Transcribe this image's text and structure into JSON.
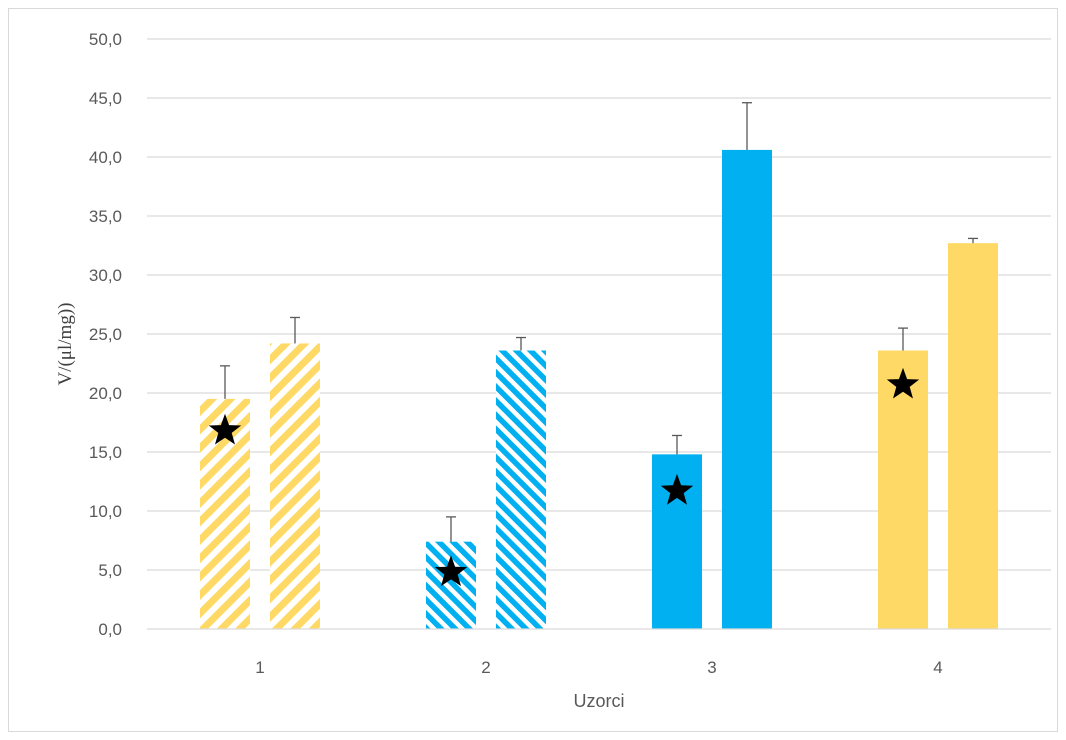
{
  "chart_data": {
    "type": "bar",
    "title": "",
    "xlabel": "Uzorci",
    "ylabel": "V/(μl/mg))",
    "ylim": [
      0,
      50
    ],
    "yticks": [
      "0,0",
      "5,0",
      "10,0",
      "15,0",
      "20,0",
      "25,0",
      "30,0",
      "35,0",
      "40,0",
      "45,0",
      "50,0"
    ],
    "grid": true,
    "legend": "none",
    "categories": [
      "1",
      "2",
      "3",
      "4"
    ],
    "bars": [
      {
        "category": "1",
        "value": 19.5,
        "error": 2.8,
        "color": "#ffd966",
        "pattern": "hatched",
        "star": true
      },
      {
        "category": "1",
        "value": 24.2,
        "error": 2.2,
        "color": "#ffd966",
        "pattern": "hatched",
        "star": false
      },
      {
        "category": "2",
        "value": 7.4,
        "error": 2.1,
        "color": "#00b0f0",
        "pattern": "hatched",
        "star": true
      },
      {
        "category": "2",
        "value": 23.6,
        "error": 1.1,
        "color": "#00b0f0",
        "pattern": "hatched",
        "star": false
      },
      {
        "category": "3",
        "value": 14.8,
        "error": 1.6,
        "color": "#00b0f0",
        "pattern": "solid",
        "star": true
      },
      {
        "category": "3",
        "value": 40.6,
        "error": 4.0,
        "color": "#00b0f0",
        "pattern": "solid",
        "star": false
      },
      {
        "category": "4",
        "value": 23.6,
        "error": 1.9,
        "color": "#ffd966",
        "pattern": "solid",
        "star": true
      },
      {
        "category": "4",
        "value": 32.7,
        "error": 0.4,
        "color": "#ffd966",
        "pattern": "solid",
        "star": false
      }
    ],
    "star_values": [
      16.8,
      4.8,
      11.7,
      20.7
    ]
  }
}
